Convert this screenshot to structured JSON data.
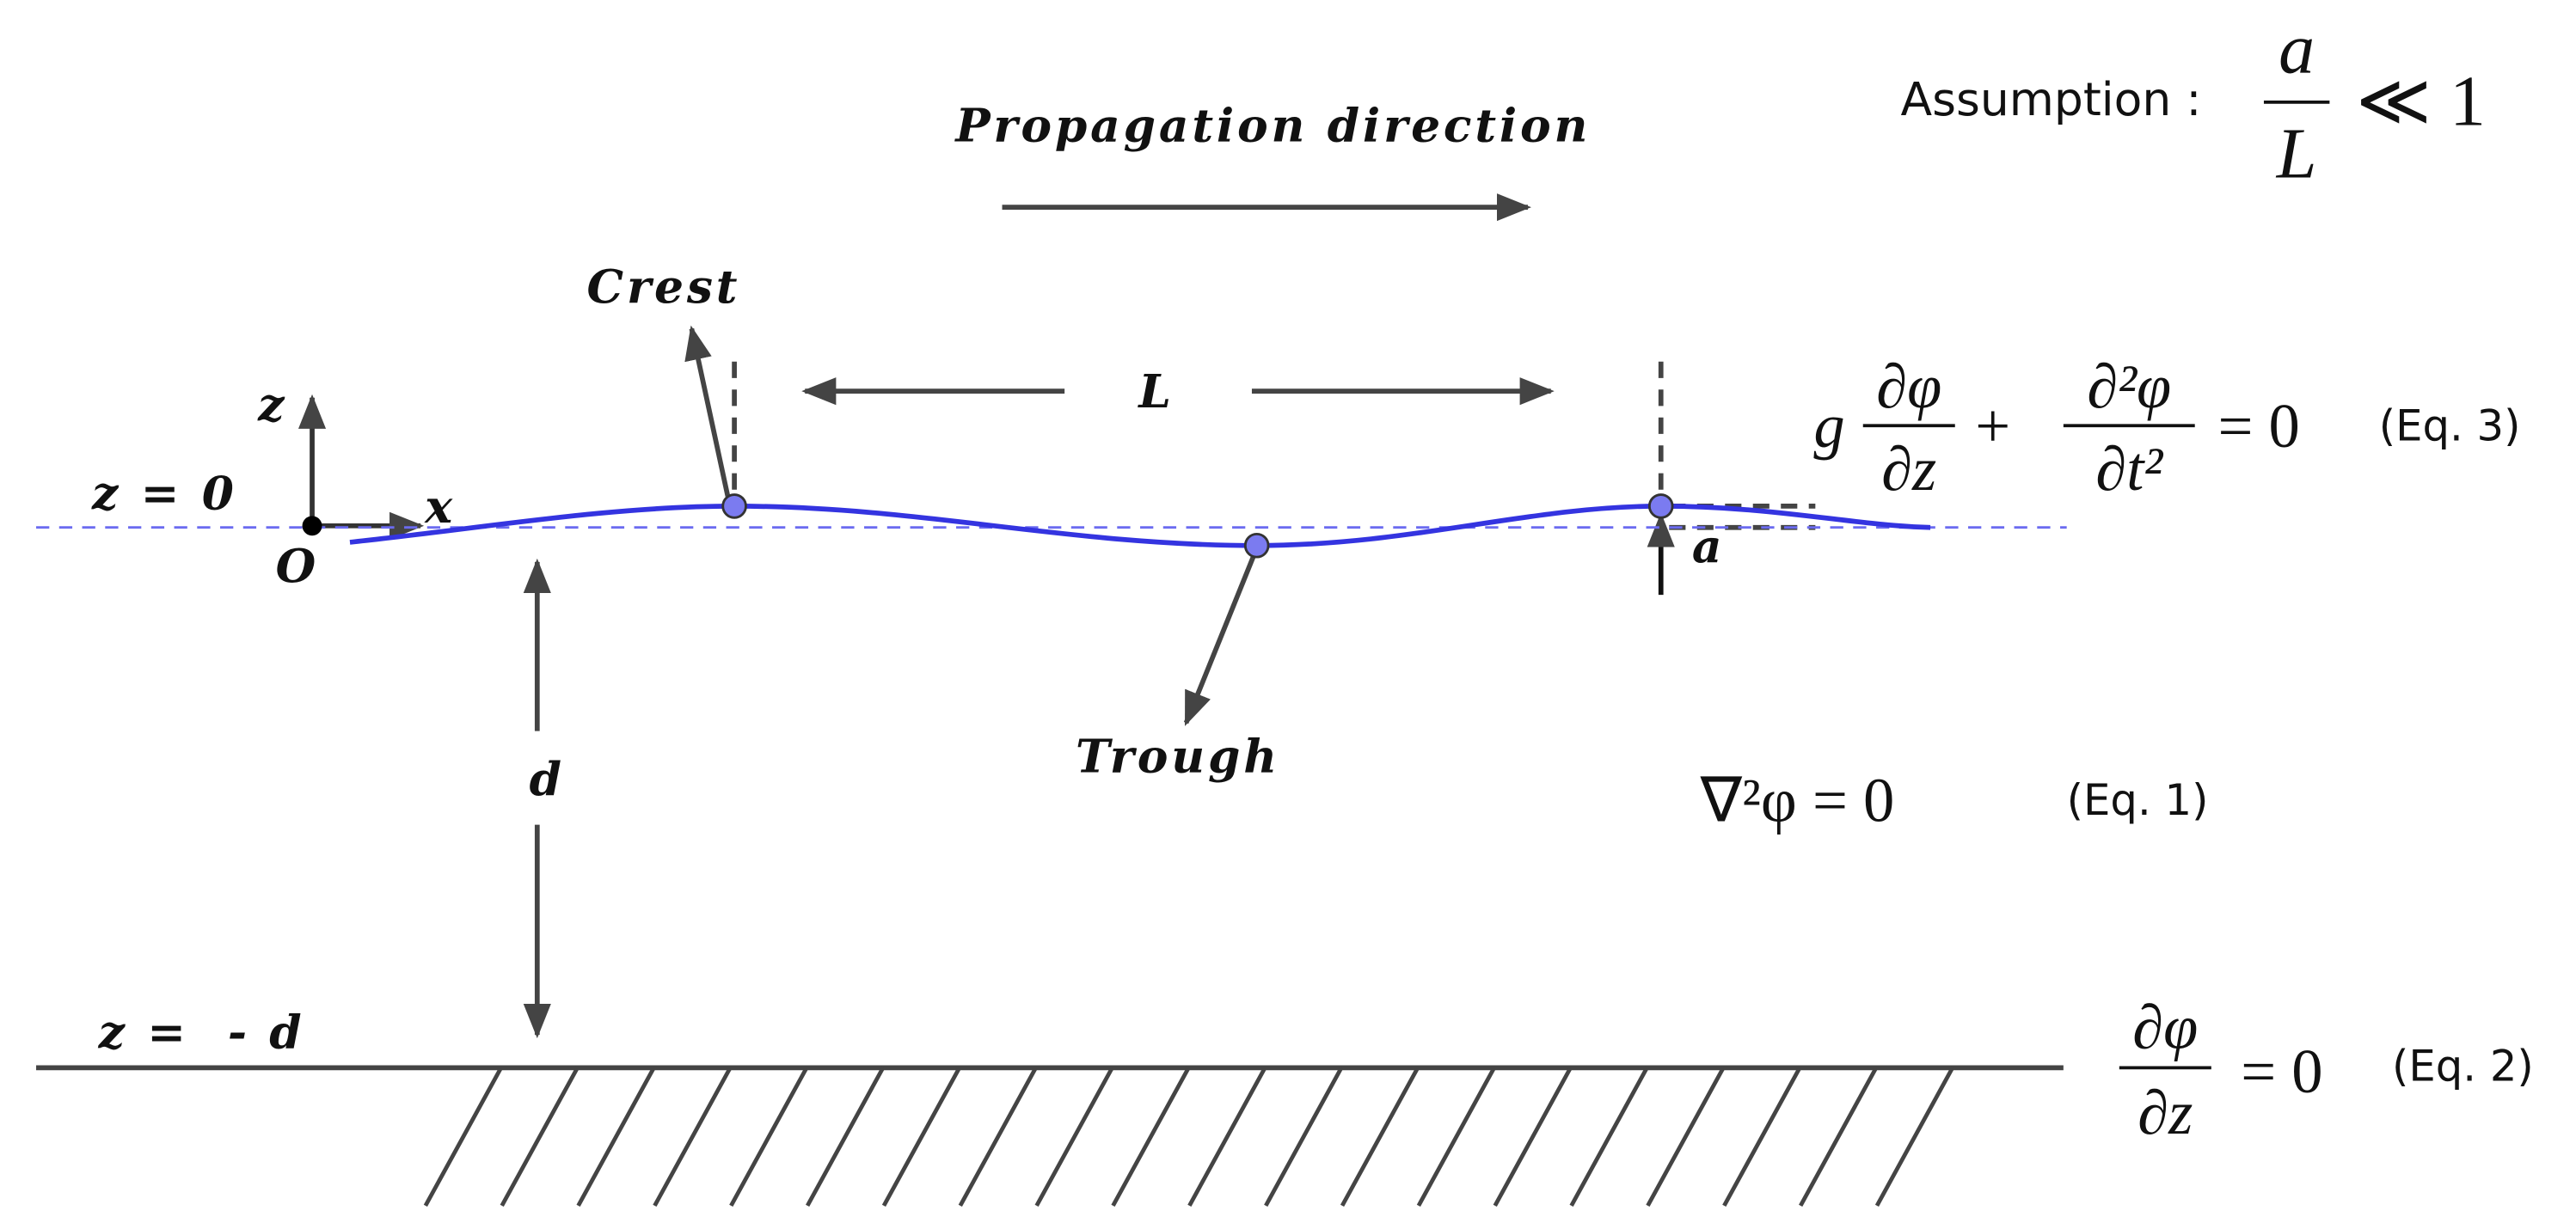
{
  "title": "Propagation direction",
  "assumption": {
    "label": "Assumption :",
    "numerator": "a",
    "denominator": "L",
    "relation": "≪ 1"
  },
  "labels": {
    "crest": "Crest",
    "trough": "Trough",
    "wavelength": "L",
    "amplitude": "a",
    "depth": "d",
    "origin": "O",
    "x_axis": "x",
    "z_axis": "z",
    "surface": "z = 0",
    "bottom": "z =  - d"
  },
  "equations": {
    "eq1": {
      "expression": "∇²φ = 0",
      "tag": "(Eq. 1)"
    },
    "eq2": {
      "numerator": "∂φ",
      "denominator": "∂z",
      "rest": "= 0",
      "tag": "(Eq. 2)"
    },
    "eq3": {
      "coefficient": "g",
      "numerator1": "∂φ",
      "denominator1": "∂z",
      "operator": "+",
      "numerator2": "∂²φ",
      "denominator2": "∂t²",
      "rest": "= 0",
      "tag": "(Eq. 3)"
    }
  }
}
